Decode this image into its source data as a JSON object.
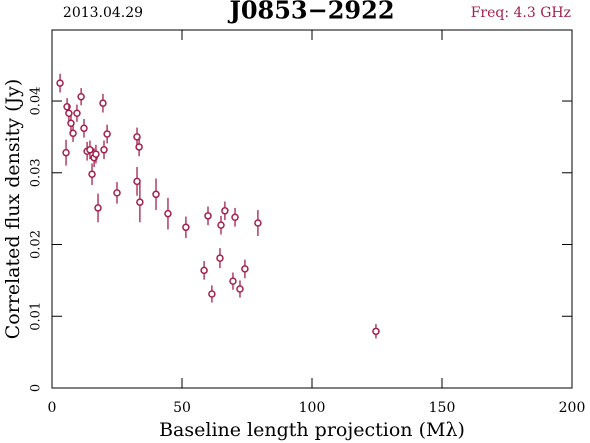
{
  "chart_data": {
    "type": "scatter",
    "title": "J0853−2922",
    "annotations": [
      "2013.04.29",
      "Freq: 4.3 GHz"
    ],
    "xlabel": "Baseline length projection (Mλ)",
    "ylabel": "Correlated flux density (Jy)",
    "color": "#a3204c",
    "x": [
      3.1,
      5.8,
      5.4,
      6.5,
      7.3,
      8.1,
      9.6,
      11.2,
      12.3,
      13.5,
      14.6,
      15.4,
      16.2,
      16.9,
      17.7,
      19.6,
      20.0,
      21.2,
      25.0,
      32.7,
      32.7,
      33.5,
      33.8,
      40.0,
      44.6,
      51.5,
      58.5,
      60.0,
      61.5,
      64.6,
      65.0,
      66.5,
      69.6,
      70.4,
      72.3,
      74.2,
      79.2,
      124.6
    ],
    "values": [
      0.0425,
      0.0392,
      0.0328,
      0.0383,
      0.0369,
      0.0355,
      0.0383,
      0.0406,
      0.0362,
      0.033,
      0.0332,
      0.0298,
      0.0321,
      0.0326,
      0.0251,
      0.0397,
      0.0332,
      0.0354,
      0.0272,
      0.035,
      0.0288,
      0.0336,
      0.0259,
      0.027,
      0.0243,
      0.0224,
      0.0164,
      0.024,
      0.0131,
      0.0181,
      0.0227,
      0.0247,
      0.0149,
      0.0238,
      0.0138,
      0.0166,
      0.023,
      0.0079
    ],
    "errors": [
      0.0013,
      0.0012,
      0.0018,
      0.0012,
      0.0012,
      0.0012,
      0.0012,
      0.0012,
      0.0013,
      0.0013,
      0.0013,
      0.0015,
      0.0013,
      0.0013,
      0.002,
      0.0013,
      0.0013,
      0.0013,
      0.0015,
      0.0013,
      0.002,
      0.0013,
      0.0028,
      0.0022,
      0.0022,
      0.0015,
      0.0013,
      0.0013,
      0.0012,
      0.0014,
      0.0013,
      0.0013,
      0.0012,
      0.0013,
      0.0012,
      0.0013,
      0.0018,
      0.001
    ],
    "xlim": [
      0,
      200
    ],
    "xticks": [
      0,
      50,
      100,
      150,
      200
    ],
    "ylim": [
      0,
      0.0499
    ],
    "yticks": [
      0,
      0.01,
      0.02,
      0.03,
      0.04
    ]
  }
}
